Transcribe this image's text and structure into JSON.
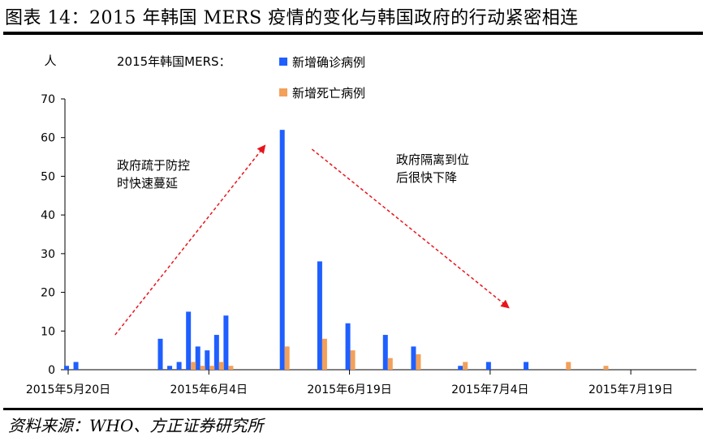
{
  "figure": {
    "title": "图表 14：2015 年韩国 MERS 疫情的变化与韩国政府的行动紧密相连",
    "source": "资料来源：WHO、方正证券研究所"
  },
  "chart_data": {
    "type": "bar",
    "ylabel": "人",
    "ylim": [
      0,
      70
    ],
    "yticks": [
      0,
      10,
      20,
      30,
      40,
      50,
      60,
      70
    ],
    "grid": false,
    "legend_title": "2015年韩国MERS：",
    "legend_position": "top-center",
    "x_range": [
      "2015-05-20",
      "2015-07-26"
    ],
    "xticks": [
      {
        "date": "2015-05-20",
        "label": "2015年5月20日"
      },
      {
        "date": "2015-06-04",
        "label": "2015年6月4日"
      },
      {
        "date": "2015-06-19",
        "label": "2015年6月19日"
      },
      {
        "date": "2015-07-04",
        "label": "2015年7月4日"
      },
      {
        "date": "2015-07-19",
        "label": "2015年7月19日"
      }
    ],
    "series": [
      {
        "name": "新增确诊病例",
        "color": "#1f5fff",
        "points": [
          {
            "x": "2015-05-20",
            "y": 1
          },
          {
            "x": "2015-05-21",
            "y": 2
          },
          {
            "x": "2015-05-30",
            "y": 8
          },
          {
            "x": "2015-05-31",
            "y": 1
          },
          {
            "x": "2015-06-01",
            "y": 2
          },
          {
            "x": "2015-06-02",
            "y": 15
          },
          {
            "x": "2015-06-03",
            "y": 6
          },
          {
            "x": "2015-06-04",
            "y": 5
          },
          {
            "x": "2015-06-05",
            "y": 9
          },
          {
            "x": "2015-06-06",
            "y": 14
          },
          {
            "x": "2015-06-12",
            "y": 62
          },
          {
            "x": "2015-06-16",
            "y": 28
          },
          {
            "x": "2015-06-19",
            "y": 12
          },
          {
            "x": "2015-06-23",
            "y": 9
          },
          {
            "x": "2015-06-26",
            "y": 6
          },
          {
            "x": "2015-07-01",
            "y": 1
          },
          {
            "x": "2015-07-04",
            "y": 2
          },
          {
            "x": "2015-07-08",
            "y": 2
          }
        ]
      },
      {
        "name": "新增死亡病例",
        "color": "#f2a05a",
        "points": [
          {
            "x": "2015-06-02",
            "y": 2
          },
          {
            "x": "2015-06-03",
            "y": 1
          },
          {
            "x": "2015-06-04",
            "y": 1
          },
          {
            "x": "2015-06-05",
            "y": 2
          },
          {
            "x": "2015-06-06",
            "y": 1
          },
          {
            "x": "2015-06-12",
            "y": 6
          },
          {
            "x": "2015-06-16",
            "y": 8
          },
          {
            "x": "2015-06-19",
            "y": 5
          },
          {
            "x": "2015-06-23",
            "y": 3
          },
          {
            "x": "2015-06-26",
            "y": 4
          },
          {
            "x": "2015-07-01",
            "y": 2
          },
          {
            "x": "2015-07-12",
            "y": 2
          },
          {
            "x": "2015-07-16",
            "y": 1
          }
        ]
      }
    ],
    "annotations": [
      {
        "lines": [
          "政府疏于防控",
          "时快速蔓延"
        ],
        "arrow": "up",
        "arrow_from": {
          "x": "2015-05-25",
          "y": 9
        },
        "arrow_to": {
          "x": "2015-06-10",
          "y": 58
        }
      },
      {
        "lines": [
          "政府隔离到位",
          "后很快下降"
        ],
        "arrow": "down",
        "arrow_from": {
          "x": "2015-06-15",
          "y": 57
        },
        "arrow_to": {
          "x": "2015-07-06",
          "y": 16
        }
      }
    ]
  }
}
